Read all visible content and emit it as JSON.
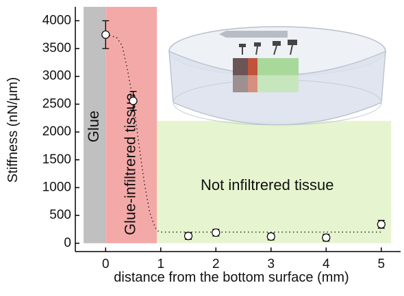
{
  "chart_data": {
    "type": "scatter",
    "xlabel": "distance from the bottom surface (mm)",
    "ylabel": "Stiffness (nN/μm)",
    "xlim": [
      -0.55,
      5.35
    ],
    "ylim": [
      -150,
      4250
    ],
    "xticks": [
      0,
      1,
      2,
      3,
      4,
      5
    ],
    "yticks": [
      0,
      500,
      1000,
      1500,
      2000,
      2500,
      3000,
      3500,
      4000
    ],
    "regions": [
      {
        "label": "Glue",
        "color": "#c0c0c0",
        "x": [
          -0.4,
          0
        ],
        "y": [
          0,
          4250
        ]
      },
      {
        "label": "Glue-infiltrered tissue",
        "color": "#f4a9a9",
        "x": [
          0,
          0.93
        ],
        "y": [
          0,
          4250
        ]
      },
      {
        "label": "Not infiltrered tissue",
        "color": "#e6f5cf",
        "x": [
          0.93,
          5.18
        ],
        "y": [
          0,
          2200
        ]
      }
    ],
    "series": [
      {
        "color": "#000000",
        "x": [
          0,
          0.5,
          1.5,
          2,
          3,
          4,
          5
        ],
        "values": [
          3750,
          2560,
          130,
          190,
          120,
          100,
          340
        ],
        "errors": [
          250,
          170,
          60,
          60,
          60,
          60,
          70
        ]
      }
    ],
    "fit": {
      "x": [
        0,
        0.2,
        0.3,
        0.4,
        0.5,
        0.6,
        0.7,
        0.8,
        0.9,
        0.95,
        1,
        2,
        3,
        4,
        5
      ],
      "values": [
        3750,
        3700,
        3550,
        3100,
        2560,
        1800,
        1100,
        550,
        280,
        220,
        200,
        200,
        200,
        200,
        200
      ]
    }
  }
}
